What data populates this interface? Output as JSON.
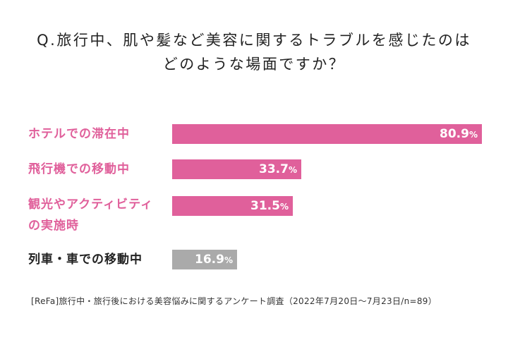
{
  "question": {
    "line1": "Q.旅行中、肌や髪など美容に関するトラブルを感じたのは",
    "line2": "どのような場面ですか？"
  },
  "chart_data": {
    "type": "bar",
    "orientation": "horizontal",
    "categories": [
      "ホテルでの滞在中",
      "飛行機での移動中",
      "観光やアクティビティの実施時",
      "列車・車での移動中"
    ],
    "category_label_lines": [
      [
        "ホテルでの滞在中"
      ],
      [
        "飛行機での移動中"
      ],
      [
        "観光やアクティビティ",
        "の実施時"
      ],
      [
        "列車・車での移動中"
      ]
    ],
    "values": [
      80.9,
      33.7,
      31.5,
      16.9
    ],
    "value_labels": [
      "80.9",
      "33.7",
      "31.5",
      "16.9"
    ],
    "value_unit": "%",
    "xlim": [
      0,
      100
    ],
    "grid": false,
    "colors": {
      "highlight": "#e0609b",
      "muted": "#aaaaaa",
      "highlight_label": "#e0609b",
      "muted_label": "#222222"
    },
    "bar_colors": [
      "highlight",
      "highlight",
      "highlight",
      "muted"
    ]
  },
  "source": "[ReFa]旅行中・旅行後における美容悩みに関するアンケート調査（2022年7月20日～7月23日/n=89）"
}
